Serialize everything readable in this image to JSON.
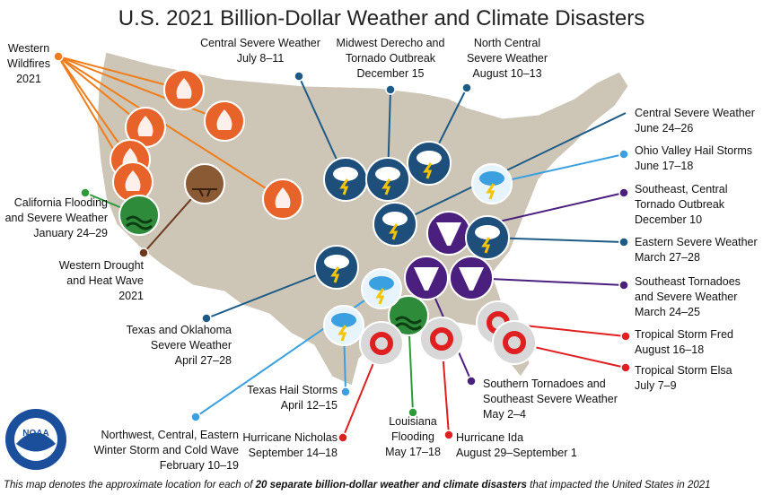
{
  "title": "U.S. 2021 Billion-Dollar Weather and Climate Disasters",
  "events": [
    {
      "lines": [
        "Western",
        "Wildfires",
        "2021"
      ]
    },
    {
      "lines": [
        "California Flooding",
        "and Severe Weather",
        "January 24–29"
      ]
    },
    {
      "lines": [
        "Western Drought",
        "and Heat Wave",
        "2021"
      ]
    },
    {
      "lines": [
        "Central Severe Weather",
        "July 8–11"
      ]
    },
    {
      "lines": [
        "Midwest Derecho and",
        "Tornado Outbreak",
        "December 15"
      ]
    },
    {
      "lines": [
        "North Central",
        "Severe Weather",
        "August 10–13"
      ]
    },
    {
      "lines": [
        "Central Severe Weather",
        "June 24–26"
      ]
    },
    {
      "lines": [
        "Ohio Valley Hail Storms",
        "June 17–18"
      ]
    },
    {
      "lines": [
        "Southeast, Central",
        "Tornado Outbreak",
        "December 10"
      ]
    },
    {
      "lines": [
        "Eastern Severe Weather",
        "March 27–28"
      ]
    },
    {
      "lines": [
        "Southeast Tornadoes",
        "and Severe Weather",
        "March 24–25"
      ]
    },
    {
      "lines": [
        "Tropical Storm Fred",
        "August 16–18"
      ]
    },
    {
      "lines": [
        "Tropical Storm Elsa",
        "July 7–9"
      ]
    },
    {
      "lines": [
        "Southern Tornadoes and",
        "Southeast Severe Weather",
        "May 2–4"
      ]
    },
    {
      "lines": [
        "Hurricane Ida",
        "August 29–September 1"
      ]
    },
    {
      "lines": [
        "Louisiana",
        "Flooding",
        "May 17–18"
      ]
    },
    {
      "lines": [
        "Hurricane Nicholas",
        "September 14–18"
      ]
    },
    {
      "lines": [
        "Texas Hail Storms",
        "April 12–15"
      ]
    },
    {
      "lines": [
        "Texas and Oklahoma",
        "Severe Weather",
        "April 27–28"
      ]
    },
    {
      "lines": [
        "Northwest, Central, Eastern",
        "Winter Storm and Cold Wave",
        "February 10–19"
      ]
    }
  ],
  "logo": "NOAA",
  "footer": {
    "before": "This map denotes the approximate location for each of ",
    "bold": "20 separate billion-dollar weather and climate disasters",
    "after": " that impacted the United States in 2021"
  }
}
